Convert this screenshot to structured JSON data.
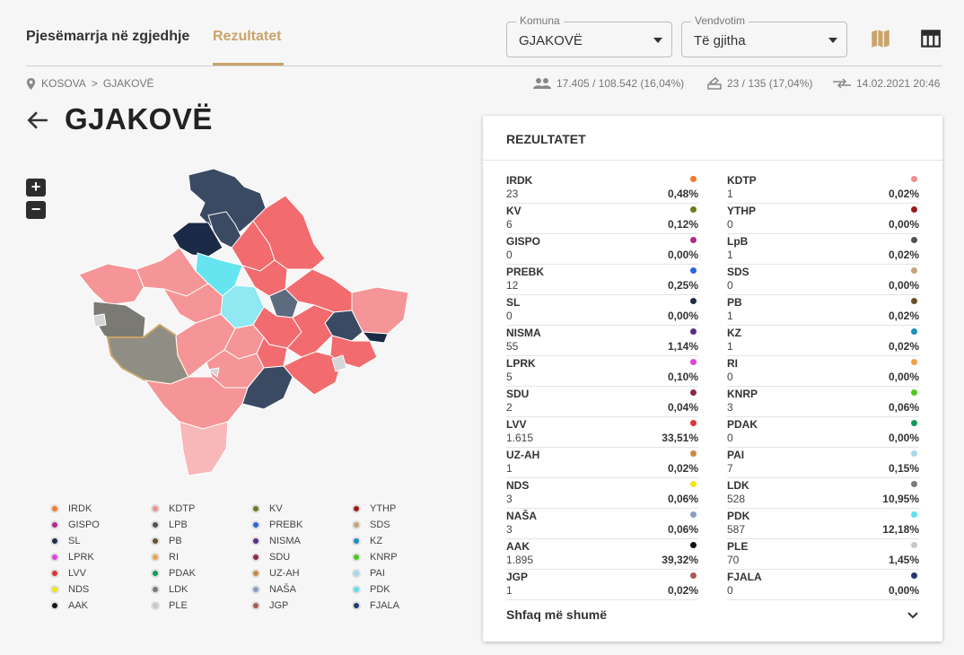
{
  "header": {
    "tab_elections": "Pjesëmarrja në zgjedhje",
    "tab_results": "Rezultatet",
    "municipality_label": "Komuna",
    "municipality_value": "GJAKOVË",
    "polling_label": "Vendvotim",
    "polling_value": "Të gjitha",
    "map_icon": "map-icon",
    "table_icon": "table-icon"
  },
  "breadcrumb": {
    "root": "KOSOVA",
    "separator": ">",
    "current": "GJAKOVË"
  },
  "stats": {
    "turnout": "17.405 / 108.542 (16,04%)",
    "stations": "23 / 135 (17,04%)",
    "updated": "14.02.2021 20:46"
  },
  "page_title": "GJAKOVË",
  "zoom": {
    "in": "+",
    "out": "−"
  },
  "panel": {
    "title": "REZULTATET",
    "show_more": "Shfaq më shumë",
    "left": [
      {
        "name": "IRDK",
        "count": "23",
        "pct": "0,48%",
        "color": "#f07b2a"
      },
      {
        "name": "KV",
        "count": "6",
        "pct": "0,12%",
        "color": "#6b7a1e"
      },
      {
        "name": "GISPO",
        "count": "0",
        "pct": "0,00%",
        "color": "#b0298f"
      },
      {
        "name": "PREBK",
        "count": "12",
        "pct": "0,25%",
        "color": "#2d63e0"
      },
      {
        "name": "SL",
        "count": "0",
        "pct": "0,00%",
        "color": "#1e2d4a"
      },
      {
        "name": "NISMA",
        "count": "55",
        "pct": "1,14%",
        "color": "#5a2d82"
      },
      {
        "name": "LPRK",
        "count": "5",
        "pct": "0,10%",
        "color": "#e045d8"
      },
      {
        "name": "SDU",
        "count": "2",
        "pct": "0,04%",
        "color": "#8a2a48"
      },
      {
        "name": "LVV",
        "count": "1.615",
        "pct": "33,51%",
        "color": "#e03236"
      },
      {
        "name": "UZ-AH",
        "count": "1",
        "pct": "0,02%",
        "color": "#c78a45"
      },
      {
        "name": "NDS",
        "count": "3",
        "pct": "0,06%",
        "color": "#f2e61a"
      },
      {
        "name": "NAŠA",
        "count": "3",
        "pct": "0,06%",
        "color": "#8a9ec0"
      },
      {
        "name": "AAK",
        "count": "1.895",
        "pct": "39,32%",
        "color": "#111111"
      },
      {
        "name": "JGP",
        "count": "1",
        "pct": "0,02%",
        "color": "#a85a55"
      }
    ],
    "right": [
      {
        "name": "KDTP",
        "count": "1",
        "pct": "0,02%",
        "color": "#f08f90"
      },
      {
        "name": "YTHP",
        "count": "0",
        "pct": "0,00%",
        "color": "#9a1a1f"
      },
      {
        "name": "LpB",
        "count": "1",
        "pct": "0,02%",
        "color": "#505055"
      },
      {
        "name": "SDS",
        "count": "0",
        "pct": "0,00%",
        "color": "#c2a67a"
      },
      {
        "name": "PB",
        "count": "1",
        "pct": "0,02%",
        "color": "#6a5228"
      },
      {
        "name": "KZ",
        "count": "1",
        "pct": "0,02%",
        "color": "#1a8ec0"
      },
      {
        "name": "RI",
        "count": "0",
        "pct": "0,00%",
        "color": "#f0a04a"
      },
      {
        "name": "KNRP",
        "count": "3",
        "pct": "0,06%",
        "color": "#4ec91a"
      },
      {
        "name": "PDAK",
        "count": "0",
        "pct": "0,00%",
        "color": "#129a5a"
      },
      {
        "name": "PAI",
        "count": "7",
        "pct": "0,15%",
        "color": "#a6d8ec"
      },
      {
        "name": "LDK",
        "count": "528",
        "pct": "10,95%",
        "color": "#7a7a7a"
      },
      {
        "name": "PDK",
        "count": "587",
        "pct": "12,18%",
        "color": "#5fe0ec"
      },
      {
        "name": "PLE",
        "count": "70",
        "pct": "1,45%",
        "color": "#c8c8c8"
      },
      {
        "name": "FJALA",
        "count": "0",
        "pct": "0,00%",
        "color": "#233a6e"
      }
    ]
  },
  "legend": [
    {
      "name": "IRDK",
      "color": "#f07b2a"
    },
    {
      "name": "KDTP",
      "color": "#f08f90"
    },
    {
      "name": "KV",
      "color": "#6b7a1e"
    },
    {
      "name": "YTHP",
      "color": "#9a1a1f"
    },
    {
      "name": "GISPO",
      "color": "#b0298f"
    },
    {
      "name": "LPB",
      "color": "#505055"
    },
    {
      "name": "PREBK",
      "color": "#2d63e0"
    },
    {
      "name": "SDS",
      "color": "#c2a67a"
    },
    {
      "name": "SL",
      "color": "#1e2d4a"
    },
    {
      "name": "PB",
      "color": "#6a5228"
    },
    {
      "name": "NISMA",
      "color": "#5a2d82"
    },
    {
      "name": "KZ",
      "color": "#1a8ec0"
    },
    {
      "name": "LPRK",
      "color": "#e045d8"
    },
    {
      "name": "RI",
      "color": "#f0a04a"
    },
    {
      "name": "SDU",
      "color": "#8a2a48"
    },
    {
      "name": "KNRP",
      "color": "#4ec91a"
    },
    {
      "name": "LVV",
      "color": "#e03236"
    },
    {
      "name": "PDAK",
      "color": "#129a5a"
    },
    {
      "name": "UZ-AH",
      "color": "#c78a45"
    },
    {
      "name": "PAI",
      "color": "#a6d8ec"
    },
    {
      "name": "NDS",
      "color": "#f2e61a"
    },
    {
      "name": "LDK",
      "color": "#7a7a7a"
    },
    {
      "name": "NAŠA",
      "color": "#8a9ec0"
    },
    {
      "name": "PDK",
      "color": "#5fe0ec"
    },
    {
      "name": "AAK",
      "color": "#111111"
    },
    {
      "name": "PLE",
      "color": "#c8c8c8"
    },
    {
      "name": "JGP",
      "color": "#a85a55"
    },
    {
      "name": "FJALA",
      "color": "#233a6e"
    }
  ],
  "colors": {
    "accent": "#c9a46a"
  }
}
